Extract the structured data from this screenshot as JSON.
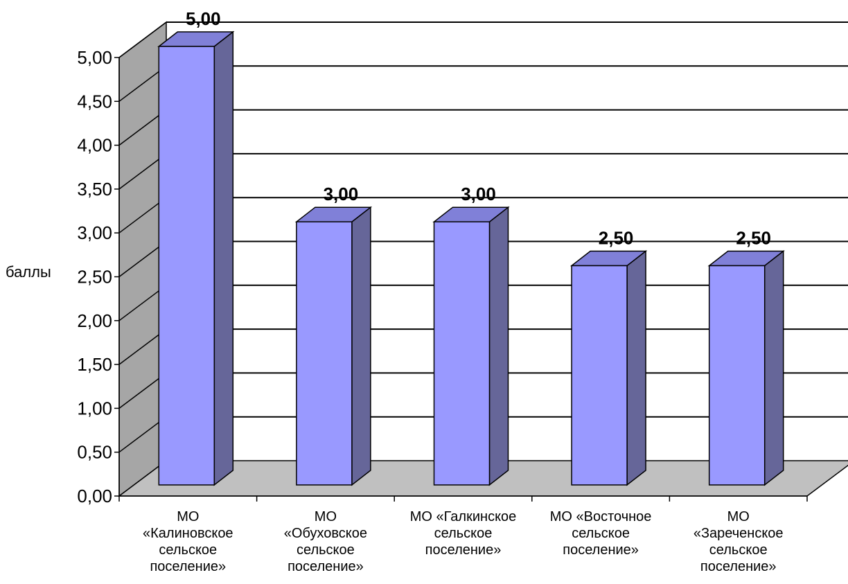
{
  "chart_data": {
    "type": "bar",
    "ylabel": "баллы",
    "ylim": [
      0,
      5
    ],
    "y_ticks": [
      "0,00",
      "0,50",
      "1,00",
      "1,50",
      "2,00",
      "2,50",
      "3,00",
      "3,50",
      "4,00",
      "4,50",
      "5,00"
    ],
    "categories": [
      [
        "МО",
        "«Калиновское",
        "сельское",
        "поселение»"
      ],
      [
        "МО",
        "«Обуховское",
        "сельское",
        "поселение»"
      ],
      [
        "МО «Галкинское",
        "сельское",
        "поселение»"
      ],
      [
        "МО «Восточное",
        "сельское",
        "поселение»"
      ],
      [
        "МО",
        "«Зареченское",
        "сельское",
        "поселение»"
      ]
    ],
    "values": [
      5.0,
      3.0,
      3.0,
      2.5,
      2.5
    ],
    "data_labels": [
      "5,00",
      "3,00",
      "3,00",
      "2,50",
      "2,50"
    ],
    "grid": true,
    "three_d": true,
    "colors": {
      "bar_front": "#9999ff",
      "bar_side": "#666699",
      "bar_top": "#8080d8",
      "wall": "#a6a6a6",
      "floor": "#c0c0c0",
      "gridline": "#000000"
    }
  }
}
